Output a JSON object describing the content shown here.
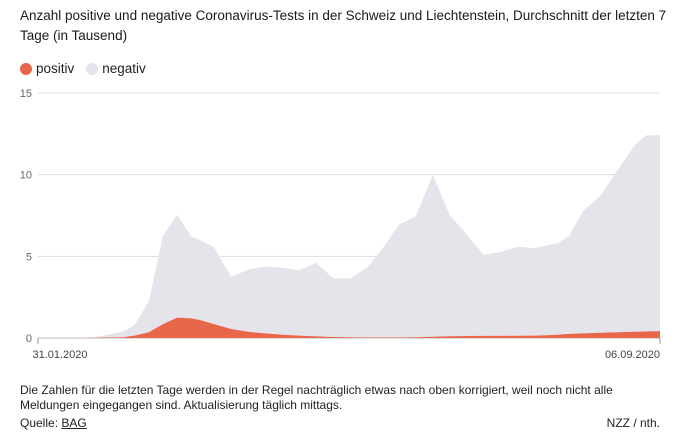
{
  "title": "Anzahl positive und negative Coronavirus-Tests in der Schweiz und Liechtenstein, Durchschnitt der letzten 7 Tage (in Tausend)",
  "legend": [
    {
      "label": "positiv",
      "color": "#e8664a"
    },
    {
      "label": "negativ",
      "color": "#e4e4ea"
    }
  ],
  "footnote": "Die Zahlen für die letzten Tage werden in der Regel nachträglich etwas nach oben korrigiert, weil noch nicht alle Meldungen eingegangen sind. Aktualisierung täglich mittags.",
  "source_label": "Quelle:",
  "source_link": "BAG",
  "credit": "NZZ / nth.",
  "chart_data": {
    "type": "area",
    "stacked": true,
    "ylim": [
      0,
      15
    ],
    "yticks": [
      0,
      5,
      10,
      15
    ],
    "x_range": [
      "2020-01-31",
      "2020-09-06"
    ],
    "x_tick_labels": [
      "31.01.2020",
      "06.09.2020"
    ],
    "x": [
      "2020-02-10",
      "2020-02-20",
      "2020-03-01",
      "2020-03-05",
      "2020-03-10",
      "2020-03-15",
      "2020-03-20",
      "2020-03-25",
      "2020-03-28",
      "2020-04-02",
      "2020-04-08",
      "2020-04-14",
      "2020-04-20",
      "2020-04-26",
      "2020-05-02",
      "2020-05-08",
      "2020-05-14",
      "2020-05-20",
      "2020-05-26",
      "2020-06-01",
      "2020-06-06",
      "2020-06-12",
      "2020-06-18",
      "2020-06-24",
      "2020-06-30",
      "2020-07-06",
      "2020-07-12",
      "2020-07-18",
      "2020-07-24",
      "2020-07-28",
      "2020-08-01",
      "2020-08-05",
      "2020-08-10",
      "2020-08-16",
      "2020-08-22",
      "2020-08-28",
      "2020-09-01",
      "2020-09-06"
    ],
    "series": [
      {
        "name": "positiv",
        "color": "#e8664a",
        "values": [
          0,
          0.01,
          0.05,
          0.15,
          0.35,
          0.85,
          1.25,
          1.2,
          1.1,
          0.85,
          0.55,
          0.38,
          0.28,
          0.2,
          0.15,
          0.1,
          0.06,
          0.04,
          0.03,
          0.03,
          0.03,
          0.04,
          0.08,
          0.11,
          0.12,
          0.13,
          0.13,
          0.14,
          0.15,
          0.17,
          0.2,
          0.25,
          0.28,
          0.32,
          0.35,
          0.38,
          0.4,
          0.42
        ]
      },
      {
        "name": "negativ",
        "color": "#e4e4ea",
        "values": [
          0,
          0.04,
          0.35,
          0.65,
          1.9,
          5.4,
          6.3,
          5.0,
          4.9,
          4.7,
          3.2,
          3.8,
          4.1,
          4.1,
          4.0,
          4.5,
          3.6,
          3.6,
          4.3,
          5.6,
          6.9,
          7.4,
          9.9,
          7.4,
          6.2,
          4.95,
          5.15,
          5.45,
          5.35,
          5.5,
          5.6,
          6.0,
          7.5,
          8.4,
          9.9,
          11.4,
          12.0,
          12.0
        ]
      }
    ]
  }
}
